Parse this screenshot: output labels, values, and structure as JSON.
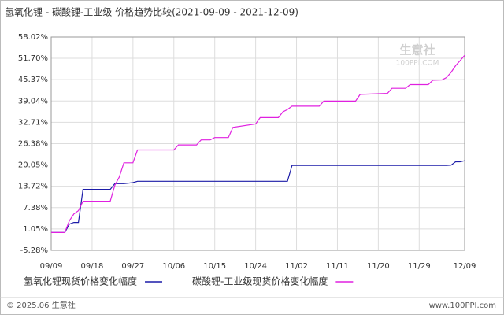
{
  "chart_data": {
    "type": "line",
    "title": "氢氧化锂 - 碳酸锂-工业级 价格趋势比较(2021-09-09 - 2021-12-09)",
    "watermark": {
      "brand": "生意社",
      "site": "100PPI.COM"
    },
    "footer": {
      "left": "© 2025.06 生意社",
      "right": "www.100PPI.com"
    },
    "x": [
      "2021-09-09",
      "2021-09-12",
      "2021-09-13",
      "2021-09-14",
      "2021-09-15",
      "2021-09-16",
      "2021-09-22",
      "2021-09-23",
      "2021-09-24",
      "2021-09-25",
      "2021-09-27",
      "2021-09-28",
      "2021-10-06",
      "2021-10-07",
      "2021-10-11",
      "2021-10-12",
      "2021-10-14",
      "2021-10-15",
      "2021-10-18",
      "2021-10-19",
      "2021-10-24",
      "2021-10-25",
      "2021-10-29",
      "2021-10-30",
      "2021-10-31",
      "2021-11-01",
      "2021-11-07",
      "2021-11-08",
      "2021-11-15",
      "2021-11-16",
      "2021-11-22",
      "2021-11-23",
      "2021-11-26",
      "2021-11-27",
      "2021-12-01",
      "2021-12-02",
      "2021-12-04",
      "2021-12-05",
      "2021-12-06",
      "2021-12-07",
      "2021-12-08",
      "2021-12-09"
    ],
    "xlim": [
      "2021-09-09",
      "2021-12-09"
    ],
    "xticks": [
      {
        "value": "2021-09-09",
        "label": "09/09"
      },
      {
        "value": "2021-09-18",
        "label": "09/18"
      },
      {
        "value": "2021-09-27",
        "label": "09/27"
      },
      {
        "value": "2021-10-06",
        "label": "10/06"
      },
      {
        "value": "2021-10-15",
        "label": "10/15"
      },
      {
        "value": "2021-10-24",
        "label": "10/24"
      },
      {
        "value": "2021-11-02",
        "label": "11/02"
      },
      {
        "value": "2021-11-11",
        "label": "11/11"
      },
      {
        "value": "2021-11-20",
        "label": "11/20"
      },
      {
        "value": "2021-11-29",
        "label": "11/29"
      },
      {
        "value": "2021-12-09",
        "label": "12/09"
      }
    ],
    "ylim": [
      -5.28,
      58.02
    ],
    "yticks": [
      {
        "value": -5.28,
        "label": "-5.28%"
      },
      {
        "value": 1.05,
        "label": "1.05%"
      },
      {
        "value": 7.38,
        "label": "7.38%"
      },
      {
        "value": 13.72,
        "label": "13.72%"
      },
      {
        "value": 20.05,
        "label": "20.05%"
      },
      {
        "value": 26.38,
        "label": "26.38%"
      },
      {
        "value": 32.71,
        "label": "32.71%"
      },
      {
        "value": 39.04,
        "label": "39.04%"
      },
      {
        "value": 45.37,
        "label": "45.37%"
      },
      {
        "value": 51.7,
        "label": "51.70%"
      },
      {
        "value": 58.02,
        "label": "58.02%"
      }
    ],
    "grid": true,
    "series": [
      {
        "name": "氢氧化锂现货价格变化幅度",
        "color": "#1c1ca8",
        "values": [
          0,
          0,
          2.5,
          3,
          3,
          12.8,
          12.8,
          14.5,
          14.5,
          14.5,
          14.8,
          15.2,
          15.2,
          15.2,
          15.2,
          15.2,
          15.2,
          15.2,
          15.2,
          15.2,
          15.2,
          15.2,
          15.2,
          15.2,
          15.2,
          19.9,
          19.9,
          19.9,
          19.9,
          19.9,
          19.9,
          19.9,
          19.9,
          19.9,
          19.9,
          19.9,
          19.9,
          19.9,
          20,
          21,
          21,
          21.3
        ]
      },
      {
        "name": "碳酸锂-工业级现货价格变化幅度",
        "color": "#e020e0",
        "values": [
          0,
          0,
          3.5,
          5.5,
          6.5,
          9.3,
          9.3,
          14,
          16.5,
          20.7,
          20.7,
          24.5,
          24.5,
          26,
          26,
          27.5,
          27.5,
          28.2,
          28.2,
          31.2,
          32.2,
          34.1,
          34.1,
          35.8,
          36.5,
          37.5,
          37.5,
          39,
          39,
          41,
          41.3,
          42.8,
          42.8,
          43.9,
          43.9,
          45.2,
          45.3,
          46,
          47.5,
          49.5,
          51,
          52.6
        ]
      }
    ]
  }
}
